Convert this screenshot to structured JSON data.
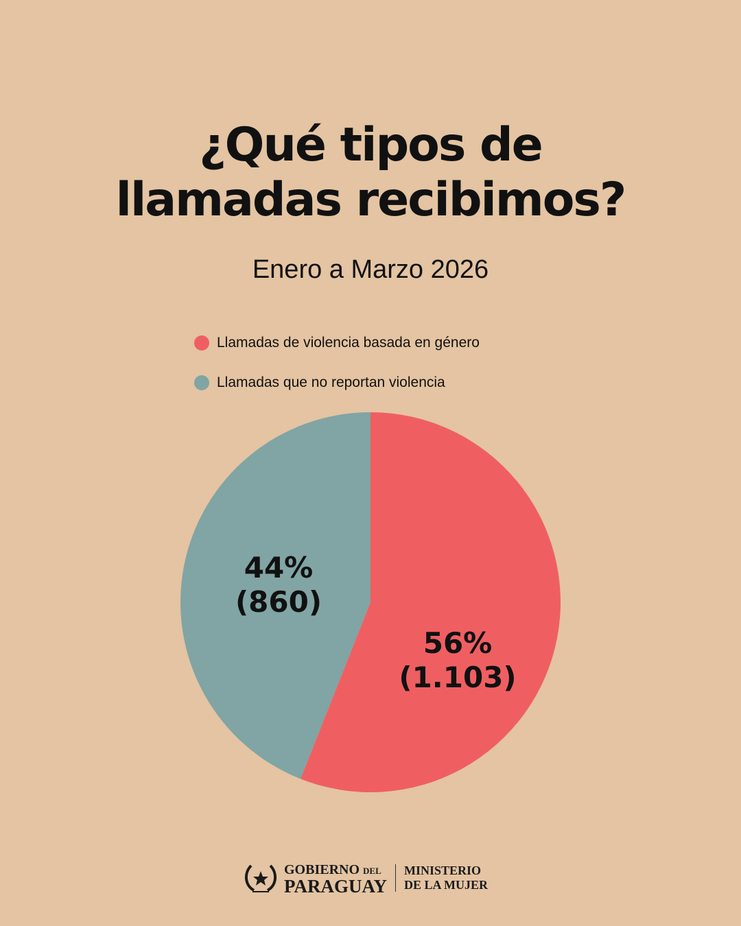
{
  "chart_data": {
    "type": "pie",
    "title": "¿Qué tipos de llamadas recibimos?",
    "subtitle": "Enero a Marzo 2026",
    "legend_position": "top",
    "slices": [
      {
        "name": "Llamadas de violencia basada en género",
        "percent": 56,
        "percent_label": "56%",
        "count": 1103,
        "count_label": "(1.103)",
        "color": "#ef5f62"
      },
      {
        "name": "Llamadas que no reportan violencia",
        "percent": 44,
        "percent_label": "44%",
        "count": 860,
        "count_label": "(860)",
        "color": "#80a5a4"
      }
    ]
  },
  "footer": {
    "gov_line1": "GOBIERNO",
    "gov_del": "DEL",
    "gov_line2": "PARAGUAY",
    "ministry_line1": "MINISTERIO",
    "ministry_line2": "DE LA MUJER"
  }
}
